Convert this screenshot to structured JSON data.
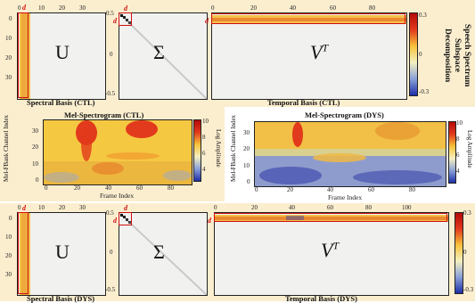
{
  "ctl": {
    "spectral_caption": "Spectral Basis (CTL)",
    "temporal_caption": "Temporal Basis (CTL)",
    "U_symbol": "U",
    "Sigma_symbol": "Σ",
    "V_symbol": "V",
    "V_sup": "T",
    "u_xticks": [
      "0",
      "10",
      "20",
      "30"
    ],
    "u_yticks": [
      "0",
      "10",
      "20",
      "30"
    ],
    "sigma_yticks": [
      "0.5",
      "0",
      "-0.5"
    ],
    "v_xticks": [
      "0",
      "20",
      "40",
      "60",
      "80"
    ],
    "v_cbar_ticks": [
      "0.3",
      "0",
      "-0.3"
    ],
    "d_label": "d"
  },
  "side_title": {
    "line1": "Speech Spectrum",
    "line2": "Subspace",
    "line3": "Decomposition"
  },
  "mel_ctl": {
    "title": "Mel-Spectrogram (CTL)",
    "ylabel_1": "Mel-FBank Channel",
    "ylabel_2": "Index",
    "xlabel": "Frame Index",
    "xticks": [
      "0",
      "20",
      "40",
      "60",
      "80"
    ],
    "yticks": [
      "30",
      "20",
      "10",
      "0"
    ],
    "cbar_label": "Log Amplitude",
    "cbar_ticks": [
      "10",
      "8",
      "6",
      "4"
    ]
  },
  "mel_dys": {
    "title": "Mel-Spectrogram (DYS)",
    "ylabel_1": "Mel-FBank Channel",
    "ylabel_2": "Index",
    "xlabel": "Frame Index",
    "xticks": [
      "0",
      "20",
      "40",
      "60",
      "80"
    ],
    "yticks": [
      "30",
      "20",
      "10",
      "0"
    ],
    "cbar_label": "Log Amplitude",
    "cbar_ticks": [
      "10",
      "8",
      "6",
      "4"
    ]
  },
  "dys": {
    "spectral_caption": "Spectral Basis (DYS)",
    "temporal_caption": "Temporal Basis (DYS)",
    "U_symbol": "U",
    "Sigma_symbol": "Σ",
    "V_symbol": "V",
    "V_sup": "T",
    "u_xticks": [
      "0",
      "10",
      "20",
      "30"
    ],
    "u_yticks": [
      "0",
      "10",
      "20",
      "30"
    ],
    "sigma_yticks": [
      "0.5",
      "0",
      "-0.5"
    ],
    "v_xticks": [
      "0",
      "20",
      "40",
      "60",
      "80",
      "100"
    ],
    "v_cbar_ticks": [
      "0.3",
      "0",
      "-0.3"
    ],
    "d_label": "d"
  },
  "colors": {
    "panel_bg": "#fbeecf",
    "highlight": "#d01010",
    "matrix_bg": "#f1f1ef",
    "colormap": [
      "#1d2ea8",
      "#8aa0d8",
      "#f4f0c0",
      "#f7c23a",
      "#e23a1c",
      "#b50a0a"
    ]
  }
}
